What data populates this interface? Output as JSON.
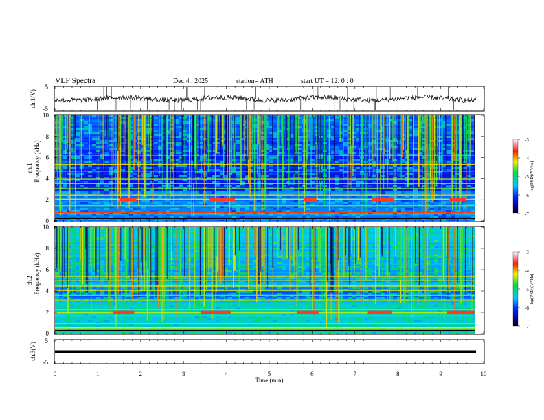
{
  "header": {
    "title": "VLF  Spectra",
    "date": "Dec.4  , 2025",
    "station": "station= ATH",
    "start_time": "start  UT  =   12: 0  : 0"
  },
  "chart_data": [
    {
      "id": "ch1-voltage",
      "type": "line",
      "ylabel": "ch.1(V)",
      "yticks": [
        "5",
        "-5"
      ],
      "ylim": [
        -5,
        5
      ],
      "xlim": [
        0,
        10
      ],
      "baseline_v": 0.0,
      "description_hint": "noisy waveform with spikes"
    },
    {
      "id": "ch1-spectrogram",
      "type": "heatmap",
      "ylabel": "ch.1\nFrequency  (kHz)",
      "ylabel_line1": "ch.1",
      "ylabel_line2": "Frequency  (kHz)",
      "yticks": [
        "0",
        "2",
        "4",
        "6",
        "8",
        "10"
      ],
      "ylim": [
        0,
        10
      ],
      "xlim": [
        0,
        10
      ],
      "colorbar": {
        "label": "log(PSD)(V²/Hz)",
        "ticks": [
          "-3",
          "-4",
          "-5",
          "-6",
          "-7"
        ],
        "range": [
          -7,
          -3
        ]
      },
      "bands_khz": [
        0.3,
        0.8,
        1.5,
        2.1,
        2.5,
        3.1,
        3.6,
        4.0,
        4.7,
        5.4,
        6.2
      ],
      "segments_min": [
        [
          1.5,
          1.9
        ],
        [
          3.6,
          4.2
        ],
        [
          5.8,
          6.1
        ],
        [
          7.4,
          7.9
        ],
        [
          9.2,
          9.6
        ]
      ]
    },
    {
      "id": "ch2-spectrogram",
      "type": "heatmap",
      "ylabel": "ch.2\nFrequency  (kHz)",
      "ylabel_line1": "ch.2",
      "ylabel_line2": "Frequency  (kHz)",
      "yticks": [
        "0",
        "2",
        "4",
        "6",
        "8",
        "10"
      ],
      "ylim": [
        0,
        10
      ],
      "xlim": [
        0,
        10
      ],
      "colorbar": {
        "label": "log(PSD)(V²/Hz)",
        "ticks": [
          "-3",
          "-4",
          "-5",
          "-6",
          "-7"
        ],
        "range": [
          -7,
          -3
        ]
      },
      "bands_khz": [
        0.5,
        1.0,
        1.7,
        2.0,
        2.3,
        3.2,
        3.6,
        4.1,
        4.5,
        5.0,
        5.4
      ],
      "segments_min": [
        [
          1.35,
          1.85
        ],
        [
          3.4,
          4.1
        ],
        [
          5.65,
          6.15
        ],
        [
          7.3,
          7.85
        ],
        [
          9.15,
          9.8
        ]
      ]
    },
    {
      "id": "ch3-voltage",
      "type": "line",
      "ylabel": "ch.3(V)",
      "yticks": [
        "5",
        "-5"
      ],
      "ylim": [
        -5,
        5
      ],
      "xlim": [
        0,
        10
      ],
      "baseline_v": 0.0
    }
  ],
  "xaxis": {
    "label": "Time  (min)",
    "ticks": [
      "0",
      "1",
      "2",
      "3",
      "4",
      "5",
      "6",
      "7",
      "8",
      "9",
      "10"
    ]
  }
}
